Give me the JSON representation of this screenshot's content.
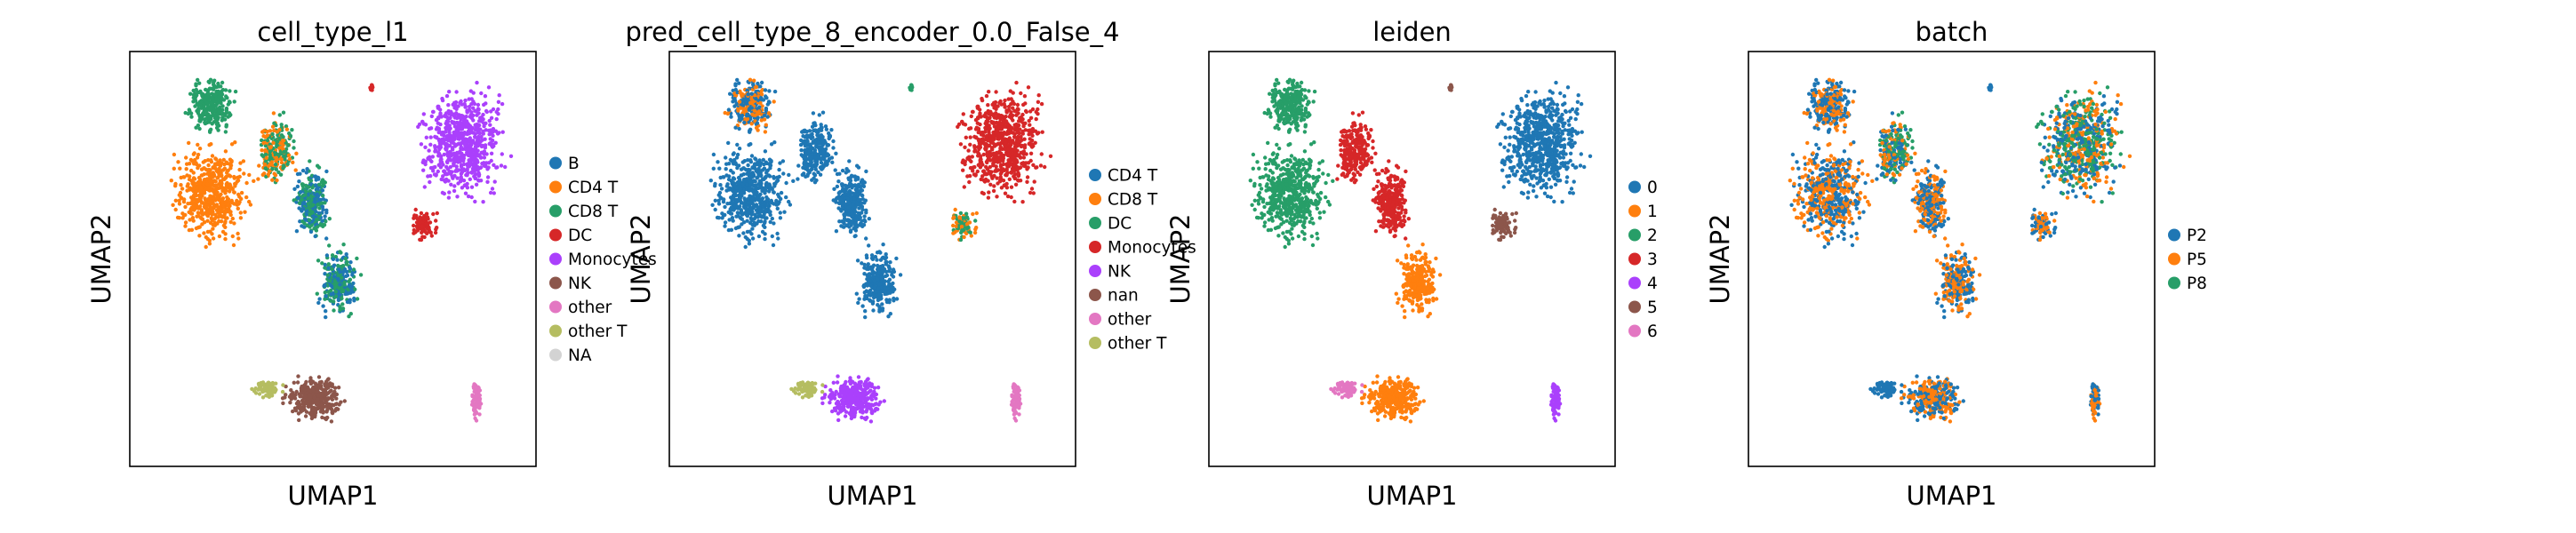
{
  "chart_data": [
    {
      "type": "scatter",
      "title": "cell_type_l1",
      "xlabel": "UMAP1",
      "ylabel": "UMAP2",
      "grid": false,
      "legend_position": "right",
      "legend": [
        {
          "label": "B",
          "color": "#1f77b4"
        },
        {
          "label": "CD4 T",
          "color": "#ff7f0e"
        },
        {
          "label": "CD8 T",
          "color": "#279e68"
        },
        {
          "label": "DC",
          "color": "#d62728"
        },
        {
          "label": "Monocytes",
          "color": "#aa40fc"
        },
        {
          "label": "NK",
          "color": "#8c564b"
        },
        {
          "label": "other",
          "color": "#e377c2"
        },
        {
          "label": "other T",
          "color": "#b5bd61"
        },
        {
          "label": "NA",
          "color": "#d3d3d3"
        }
      ]
    },
    {
      "type": "scatter",
      "title": "pred_cell_type_8_encoder_0.0_False_4",
      "xlabel": "UMAP1",
      "ylabel": "UMAP2",
      "grid": false,
      "legend_position": "right",
      "legend": [
        {
          "label": "CD4 T",
          "color": "#1f77b4"
        },
        {
          "label": "CD8 T",
          "color": "#ff7f0e"
        },
        {
          "label": "DC",
          "color": "#279e68"
        },
        {
          "label": "Monocytes",
          "color": "#d62728"
        },
        {
          "label": "NK",
          "color": "#aa40fc"
        },
        {
          "label": "nan",
          "color": "#8c564b"
        },
        {
          "label": "other",
          "color": "#e377c2"
        },
        {
          "label": "other T",
          "color": "#b5bd61"
        }
      ]
    },
    {
      "type": "scatter",
      "title": "leiden",
      "xlabel": "UMAP1",
      "ylabel": "UMAP2",
      "grid": false,
      "legend_position": "right",
      "legend": [
        {
          "label": "0",
          "color": "#1f77b4"
        },
        {
          "label": "1",
          "color": "#ff7f0e"
        },
        {
          "label": "2",
          "color": "#279e68"
        },
        {
          "label": "3",
          "color": "#d62728"
        },
        {
          "label": "4",
          "color": "#aa40fc"
        },
        {
          "label": "5",
          "color": "#8c564b"
        },
        {
          "label": "6",
          "color": "#e377c2"
        }
      ]
    },
    {
      "type": "scatter",
      "title": "batch",
      "xlabel": "UMAP1",
      "ylabel": "UMAP2",
      "grid": false,
      "legend_position": "right",
      "legend": [
        {
          "label": "P2",
          "color": "#1f77b4"
        },
        {
          "label": "P5",
          "color": "#ff7f0e"
        },
        {
          "label": "P8",
          "color": "#279e68"
        }
      ]
    }
  ]
}
